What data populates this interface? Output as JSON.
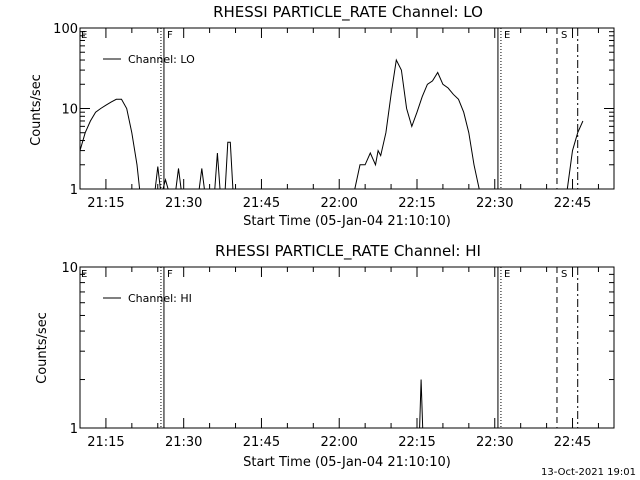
{
  "footer": {
    "date": "13-Oct-2021 19:01"
  },
  "chart_data": [
    {
      "type": "line",
      "title": "RHESSI PARTICLE_RATE Channel: LO",
      "xlabel": "Start Time (05-Jan-04 21:10:10)",
      "ylabel": "Counts/sec",
      "yscale": "log",
      "xlim": [
        "21:10",
        "22:53"
      ],
      "ylim": [
        1,
        100
      ],
      "x_ticks": [
        "21:15",
        "21:30",
        "21:45",
        "22:00",
        "22:15",
        "22:30",
        "22:45"
      ],
      "y_ticks": [
        "1",
        "10",
        "100"
      ],
      "legend": {
        "position": "top-left",
        "entries": [
          "Channel: LO"
        ]
      },
      "markers": [
        {
          "label": "E",
          "time": "21:10",
          "style": "label-only"
        },
        {
          "label": "F",
          "time": "21:26",
          "style": "dotted+solid"
        },
        {
          "label": "E",
          "time": "22:31",
          "style": "solid+dotted"
        },
        {
          "label": "S",
          "time": "22:42",
          "style": "dashed"
        },
        {
          "label": "",
          "time": "22:46",
          "style": "dash-dot"
        }
      ],
      "series": [
        {
          "segments": [
            [
              [
                "21:10",
                3
              ],
              [
                "21:11",
                5
              ],
              [
                "21:12",
                7
              ],
              [
                "21:13",
                9
              ],
              [
                "21:14",
                10
              ],
              [
                "21:15",
                11
              ],
              [
                "21:16",
                12
              ],
              [
                "21:17",
                13
              ],
              [
                "21:18",
                13
              ],
              [
                "21:19",
                10
              ],
              [
                "21:20",
                5
              ],
              [
                "21:21",
                2
              ],
              [
                "21:21.5",
                1
              ]
            ],
            [
              [
                "21:24.5",
                1
              ],
              [
                "21:25",
                1.9
              ],
              [
                "21:25.5",
                1
              ]
            ],
            [
              [
                "21:26",
                1
              ],
              [
                "21:26.5",
                1.3
              ],
              [
                "21:27",
                1
              ]
            ],
            [
              [
                "21:28.5",
                1
              ],
              [
                "21:29",
                1.8
              ],
              [
                "21:29.5",
                1
              ]
            ],
            [
              [
                "21:33",
                1
              ],
              [
                "21:33.5",
                1.8
              ],
              [
                "21:34",
                1
              ]
            ],
            [
              [
                "21:36",
                1
              ],
              [
                "21:36.5",
                2.8
              ],
              [
                "21:37",
                1
              ]
            ],
            [
              [
                "21:38",
                1
              ],
              [
                "21:38.5",
                3.8
              ],
              [
                "21:39",
                3.8
              ],
              [
                "21:39.5",
                1
              ]
            ],
            [
              [
                "22:03",
                1
              ],
              [
                "22:04",
                2
              ],
              [
                "22:05",
                2
              ],
              [
                "22:06",
                2.8
              ],
              [
                "22:07",
                2
              ],
              [
                "22:07.5",
                3
              ],
              [
                "22:08",
                2.6
              ],
              [
                "22:09",
                5
              ],
              [
                "22:10",
                15
              ],
              [
                "22:11",
                40
              ],
              [
                "22:12",
                30
              ],
              [
                "22:13",
                10
              ],
              [
                "22:14",
                6
              ],
              [
                "22:15",
                9
              ],
              [
                "22:16",
                14
              ],
              [
                "22:17",
                20
              ],
              [
                "22:18",
                22
              ],
              [
                "22:19",
                28
              ],
              [
                "22:20",
                20
              ],
              [
                "22:21",
                18
              ],
              [
                "22:22",
                15
              ],
              [
                "22:23",
                13
              ],
              [
                "22:24",
                9
              ],
              [
                "22:25",
                5
              ],
              [
                "22:26",
                2
              ],
              [
                "22:27",
                1
              ]
            ],
            [
              [
                "22:44",
                1
              ],
              [
                "22:45",
                3
              ],
              [
                "22:46",
                5
              ],
              [
                "22:47",
                7
              ]
            ]
          ]
        }
      ]
    },
    {
      "type": "line",
      "title": "RHESSI PARTICLE_RATE Channel: HI",
      "xlabel": "Start Time (05-Jan-04 21:10:10)",
      "ylabel": "Counts/sec",
      "yscale": "log",
      "xlim": [
        "21:10",
        "22:53"
      ],
      "ylim": [
        1,
        10
      ],
      "x_ticks": [
        "21:15",
        "21:30",
        "21:45",
        "22:00",
        "22:15",
        "22:30",
        "22:45"
      ],
      "y_ticks": [
        "1",
        "10"
      ],
      "legend": {
        "position": "top-left",
        "entries": [
          "Channel: HI"
        ]
      },
      "markers": [
        {
          "label": "E",
          "time": "21:10",
          "style": "label-only"
        },
        {
          "label": "F",
          "time": "21:26",
          "style": "dotted+solid"
        },
        {
          "label": "E",
          "time": "22:31",
          "style": "solid+dotted"
        },
        {
          "label": "S",
          "time": "22:42",
          "style": "dashed"
        },
        {
          "label": "",
          "time": "22:46",
          "style": "dash-dot"
        }
      ],
      "series": [
        {
          "segments": [
            [
              [
                "22:15.5",
                1
              ],
              [
                "22:15.8",
                2
              ],
              [
                "22:16.1",
                1
              ]
            ]
          ]
        }
      ]
    }
  ]
}
